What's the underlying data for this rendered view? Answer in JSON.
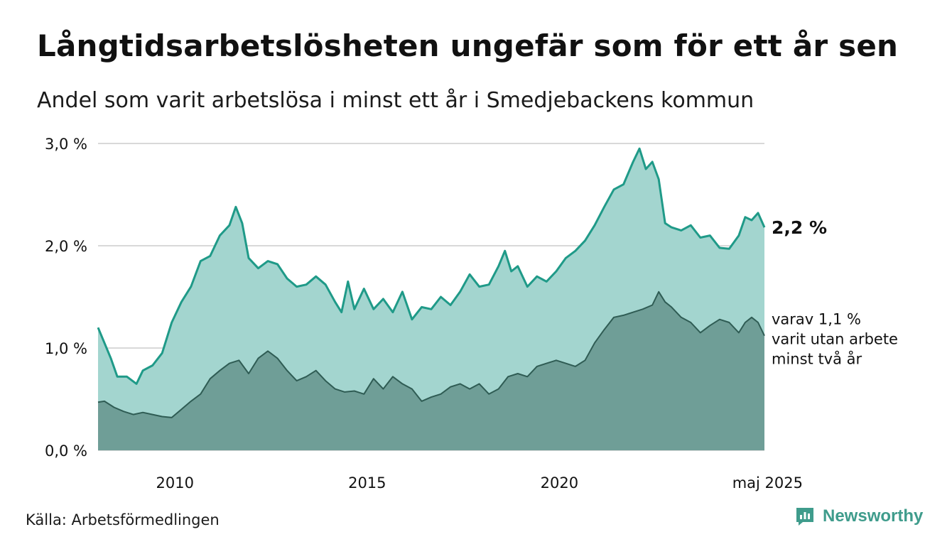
{
  "header": {
    "title": "Långtidsarbetslösheten ungefär som för ett år sen",
    "subtitle": "Andel som varit arbetslösa i minst ett år i Smedjebackens kommun"
  },
  "footer": {
    "source": "Källa: Arbetsförmedlingen",
    "brand": "Newsworthy",
    "brand_icon": "newsworthy-logo-icon"
  },
  "colors": {
    "series1_line": "#1f9a88",
    "series1_fill": "#a3d5cf",
    "series2_line": "#2f5c54",
    "series2_fill": "#6f9e97",
    "grid": "#d9d9d9",
    "brand": "#3f9c8c"
  },
  "chart_data": {
    "type": "area",
    "x_start": "2008-01",
    "x_end": "2025-05",
    "ylim": [
      0,
      3.0
    ],
    "y_ticks": [
      {
        "value": 0,
        "label": "0,0 %"
      },
      {
        "value": 1,
        "label": "1,0 %"
      },
      {
        "value": 2,
        "label": "2,0 %"
      },
      {
        "value": 3,
        "label": "3,0 %"
      }
    ],
    "x_ticks": [
      {
        "value": "2010-01",
        "label": "2010"
      },
      {
        "value": "2015-01",
        "label": "2015"
      },
      {
        "value": "2020-01",
        "label": "2020"
      },
      {
        "value": "2025-05",
        "label": "maj 2025"
      }
    ],
    "grid": true,
    "series": [
      {
        "name": "",
        "end_label": "2,2 %",
        "points": [
          [
            "2008-01",
            1.2
          ],
          [
            "2008-03",
            1.05
          ],
          [
            "2008-05",
            0.9
          ],
          [
            "2008-07",
            0.72
          ],
          [
            "2008-10",
            0.72
          ],
          [
            "2009-01",
            0.65
          ],
          [
            "2009-03",
            0.78
          ],
          [
            "2009-06",
            0.83
          ],
          [
            "2009-09",
            0.95
          ],
          [
            "2009-12",
            1.25
          ],
          [
            "2010-03",
            1.45
          ],
          [
            "2010-06",
            1.6
          ],
          [
            "2010-09",
            1.85
          ],
          [
            "2010-12",
            1.9
          ],
          [
            "2011-03",
            2.1
          ],
          [
            "2011-06",
            2.2
          ],
          [
            "2011-08",
            2.38
          ],
          [
            "2011-10",
            2.22
          ],
          [
            "2011-12",
            1.88
          ],
          [
            "2012-03",
            1.78
          ],
          [
            "2012-06",
            1.85
          ],
          [
            "2012-09",
            1.82
          ],
          [
            "2012-12",
            1.68
          ],
          [
            "2013-03",
            1.6
          ],
          [
            "2013-06",
            1.62
          ],
          [
            "2013-09",
            1.7
          ],
          [
            "2013-12",
            1.62
          ],
          [
            "2014-03",
            1.45
          ],
          [
            "2014-05",
            1.35
          ],
          [
            "2014-07",
            1.65
          ],
          [
            "2014-09",
            1.38
          ],
          [
            "2014-12",
            1.58
          ],
          [
            "2015-03",
            1.38
          ],
          [
            "2015-06",
            1.48
          ],
          [
            "2015-09",
            1.35
          ],
          [
            "2015-12",
            1.55
          ],
          [
            "2016-03",
            1.28
          ],
          [
            "2016-06",
            1.4
          ],
          [
            "2016-09",
            1.38
          ],
          [
            "2016-12",
            1.5
          ],
          [
            "2017-03",
            1.42
          ],
          [
            "2017-06",
            1.55
          ],
          [
            "2017-09",
            1.72
          ],
          [
            "2017-12",
            1.6
          ],
          [
            "2018-03",
            1.62
          ],
          [
            "2018-06",
            1.8
          ],
          [
            "2018-08",
            1.95
          ],
          [
            "2018-10",
            1.75
          ],
          [
            "2018-12",
            1.8
          ],
          [
            "2019-03",
            1.6
          ],
          [
            "2019-06",
            1.7
          ],
          [
            "2019-09",
            1.65
          ],
          [
            "2019-12",
            1.75
          ],
          [
            "2020-03",
            1.88
          ],
          [
            "2020-06",
            1.95
          ],
          [
            "2020-09",
            2.05
          ],
          [
            "2020-12",
            2.2
          ],
          [
            "2021-03",
            2.38
          ],
          [
            "2021-06",
            2.55
          ],
          [
            "2021-09",
            2.6
          ],
          [
            "2021-12",
            2.82
          ],
          [
            "2022-02",
            2.95
          ],
          [
            "2022-04",
            2.75
          ],
          [
            "2022-06",
            2.82
          ],
          [
            "2022-08",
            2.65
          ],
          [
            "2022-10",
            2.22
          ],
          [
            "2022-12",
            2.18
          ],
          [
            "2023-03",
            2.15
          ],
          [
            "2023-06",
            2.2
          ],
          [
            "2023-09",
            2.08
          ],
          [
            "2023-12",
            2.1
          ],
          [
            "2024-03",
            1.98
          ],
          [
            "2024-06",
            1.97
          ],
          [
            "2024-09",
            2.1
          ],
          [
            "2024-11",
            2.28
          ],
          [
            "2025-01",
            2.25
          ],
          [
            "2025-03",
            2.32
          ],
          [
            "2025-05",
            2.18
          ]
        ]
      },
      {
        "name": "",
        "end_label_lines": [
          "varav 1,1 %",
          "varit utan arbete",
          "minst två år"
        ],
        "points": [
          [
            "2008-01",
            0.47
          ],
          [
            "2008-03",
            0.48
          ],
          [
            "2008-06",
            0.42
          ],
          [
            "2008-09",
            0.38
          ],
          [
            "2008-12",
            0.35
          ],
          [
            "2009-03",
            0.37
          ],
          [
            "2009-06",
            0.35
          ],
          [
            "2009-09",
            0.33
          ],
          [
            "2009-12",
            0.32
          ],
          [
            "2010-03",
            0.4
          ],
          [
            "2010-06",
            0.48
          ],
          [
            "2010-09",
            0.55
          ],
          [
            "2010-12",
            0.7
          ],
          [
            "2011-03",
            0.78
          ],
          [
            "2011-06",
            0.85
          ],
          [
            "2011-09",
            0.88
          ],
          [
            "2011-12",
            0.75
          ],
          [
            "2012-03",
            0.9
          ],
          [
            "2012-06",
            0.97
          ],
          [
            "2012-09",
            0.9
          ],
          [
            "2012-12",
            0.78
          ],
          [
            "2013-03",
            0.68
          ],
          [
            "2013-06",
            0.72
          ],
          [
            "2013-09",
            0.78
          ],
          [
            "2013-12",
            0.68
          ],
          [
            "2014-03",
            0.6
          ],
          [
            "2014-06",
            0.57
          ],
          [
            "2014-09",
            0.58
          ],
          [
            "2014-12",
            0.55
          ],
          [
            "2015-03",
            0.7
          ],
          [
            "2015-06",
            0.6
          ],
          [
            "2015-09",
            0.72
          ],
          [
            "2015-12",
            0.65
          ],
          [
            "2016-03",
            0.6
          ],
          [
            "2016-06",
            0.48
          ],
          [
            "2016-09",
            0.52
          ],
          [
            "2016-12",
            0.55
          ],
          [
            "2017-03",
            0.62
          ],
          [
            "2017-06",
            0.65
          ],
          [
            "2017-09",
            0.6
          ],
          [
            "2017-12",
            0.65
          ],
          [
            "2018-03",
            0.55
          ],
          [
            "2018-06",
            0.6
          ],
          [
            "2018-09",
            0.72
          ],
          [
            "2018-12",
            0.75
          ],
          [
            "2019-03",
            0.72
          ],
          [
            "2019-06",
            0.82
          ],
          [
            "2019-09",
            0.85
          ],
          [
            "2019-12",
            0.88
          ],
          [
            "2020-03",
            0.85
          ],
          [
            "2020-06",
            0.82
          ],
          [
            "2020-09",
            0.88
          ],
          [
            "2020-12",
            1.05
          ],
          [
            "2021-03",
            1.18
          ],
          [
            "2021-06",
            1.3
          ],
          [
            "2021-09",
            1.32
          ],
          [
            "2021-12",
            1.35
          ],
          [
            "2022-03",
            1.38
          ],
          [
            "2022-06",
            1.42
          ],
          [
            "2022-08",
            1.55
          ],
          [
            "2022-10",
            1.45
          ],
          [
            "2022-12",
            1.4
          ],
          [
            "2023-03",
            1.3
          ],
          [
            "2023-06",
            1.25
          ],
          [
            "2023-09",
            1.15
          ],
          [
            "2023-12",
            1.22
          ],
          [
            "2024-03",
            1.28
          ],
          [
            "2024-06",
            1.25
          ],
          [
            "2024-09",
            1.15
          ],
          [
            "2024-11",
            1.25
          ],
          [
            "2025-01",
            1.3
          ],
          [
            "2025-03",
            1.25
          ],
          [
            "2025-05",
            1.12
          ]
        ]
      }
    ]
  }
}
